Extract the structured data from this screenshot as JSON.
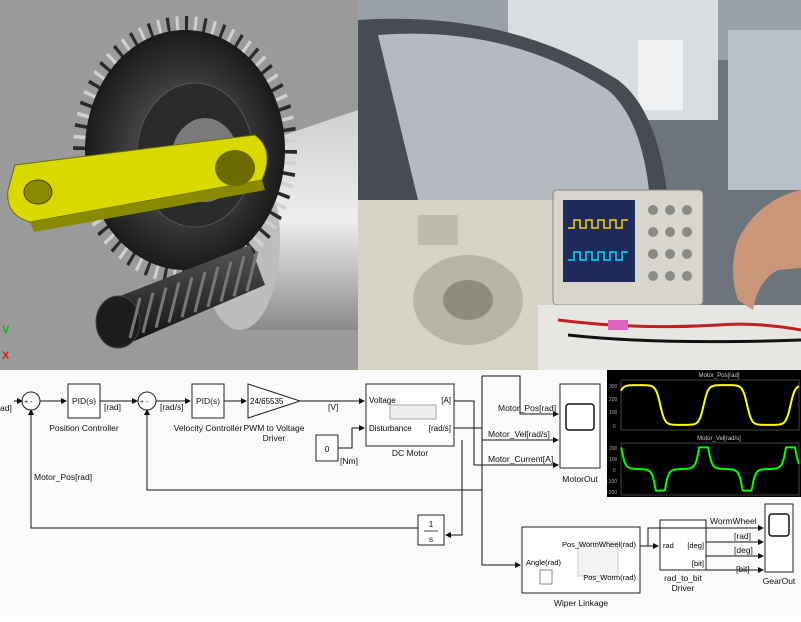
{
  "cad_panel": {
    "axis_labels": {
      "v": "V",
      "x": "X"
    }
  },
  "diagram": {
    "input_port": "ad]",
    "sum1_signs": "+ -",
    "sum2_signs": "+ -",
    "pid_position": {
      "text": "PID(s)",
      "caption": "Position Controller"
    },
    "signal_rad1": "[rad]",
    "pid_velocity": {
      "text": "PID(s)",
      "caption": "Velocity Controller"
    },
    "signal_rads": "[rad/s]",
    "pwm_gain": {
      "text": "24/65535",
      "caption_line1": "PWM to Voltage",
      "caption_line2": "Driver"
    },
    "signal_v": "[V]",
    "constant": {
      "text": "0",
      "unit": "[Nm]"
    },
    "dc_motor": {
      "port_voltage": "Voltage",
      "port_disturbance": "Disturbance",
      "port_a": "[A]",
      "port_rads": "[rad/s]",
      "caption": "DC Motor"
    },
    "signals_out": {
      "pos": "Motor_Pos[rad]",
      "vel": "Motor_Vel[rad/s]",
      "current": "Motor_Current[A]"
    },
    "motor_scope_caption": "MotorOut",
    "feedback_label": "Motor_Pos[rad]",
    "integrator": {
      "num": "1",
      "den": "s"
    },
    "wiper": {
      "port_angle": "Angle(rad)",
      "port_wormwheel": "Pos_WormWheel(rad)",
      "port_worm": "Pos_Worm(rad)",
      "caption": "Wiper Linkage"
    },
    "rad_to_bit": {
      "port_rad": "rad",
      "port_deg": "[deg]",
      "port_bit": "[bit]",
      "caption_line1": "rad_to_bit",
      "caption_line2": "Driver"
    },
    "gear_signals": {
      "wormwheel": "WormWheel",
      "rad": "[rad]",
      "deg": "[deg]",
      "bit": "[bit]"
    },
    "gear_scope_caption": "GearOut"
  },
  "scope_plot": {
    "top_title": "Motor_Pos[rad]",
    "bottom_title": "Motor_Vel[rad/s]",
    "top_ticks": [
      "300",
      "200",
      "100",
      "0"
    ],
    "bottom_ticks": [
      "200",
      "100",
      "0",
      "-100",
      "-200"
    ],
    "colors": {
      "pos": "#ffff00",
      "vel": "#00ff00"
    }
  }
}
